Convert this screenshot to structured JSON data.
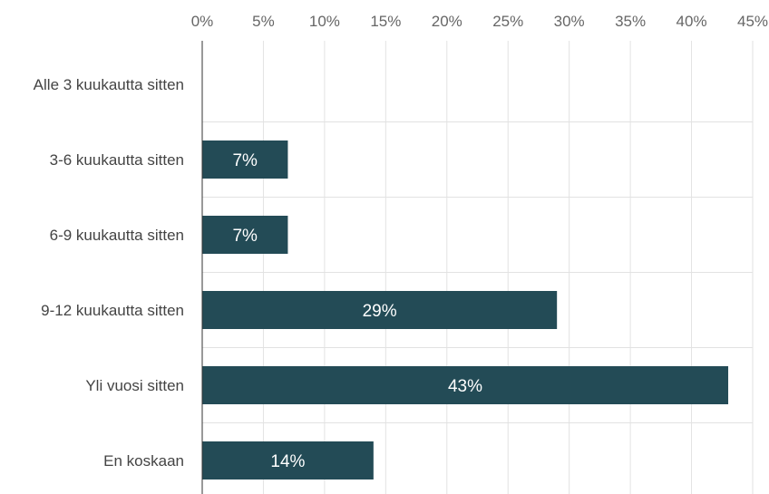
{
  "chart_data": {
    "type": "bar",
    "orientation": "horizontal",
    "categories": [
      "Alle 3 kuukautta sitten",
      "3-6 kuukautta sitten",
      "6-9 kuukautta sitten",
      "9-12 kuukautta sitten",
      "Yli vuosi sitten",
      "En koskaan"
    ],
    "values": [
      0,
      7,
      7,
      29,
      43,
      14
    ],
    "value_labels": [
      "",
      "7%",
      "7%",
      "29%",
      "43%",
      "14%"
    ],
    "x_ticks": [
      0,
      5,
      10,
      15,
      20,
      25,
      30,
      35,
      40,
      45
    ],
    "x_tick_labels": [
      "0%",
      "5%",
      "10%",
      "15%",
      "20%",
      "25%",
      "30%",
      "35%",
      "40%",
      "45%"
    ],
    "xlim": [
      0,
      45
    ],
    "x_axis_position": "top",
    "grid": true,
    "title": "",
    "xlabel": "",
    "ylabel": "",
    "bar_color": "#234b56",
    "label_color": "#ffffff"
  }
}
